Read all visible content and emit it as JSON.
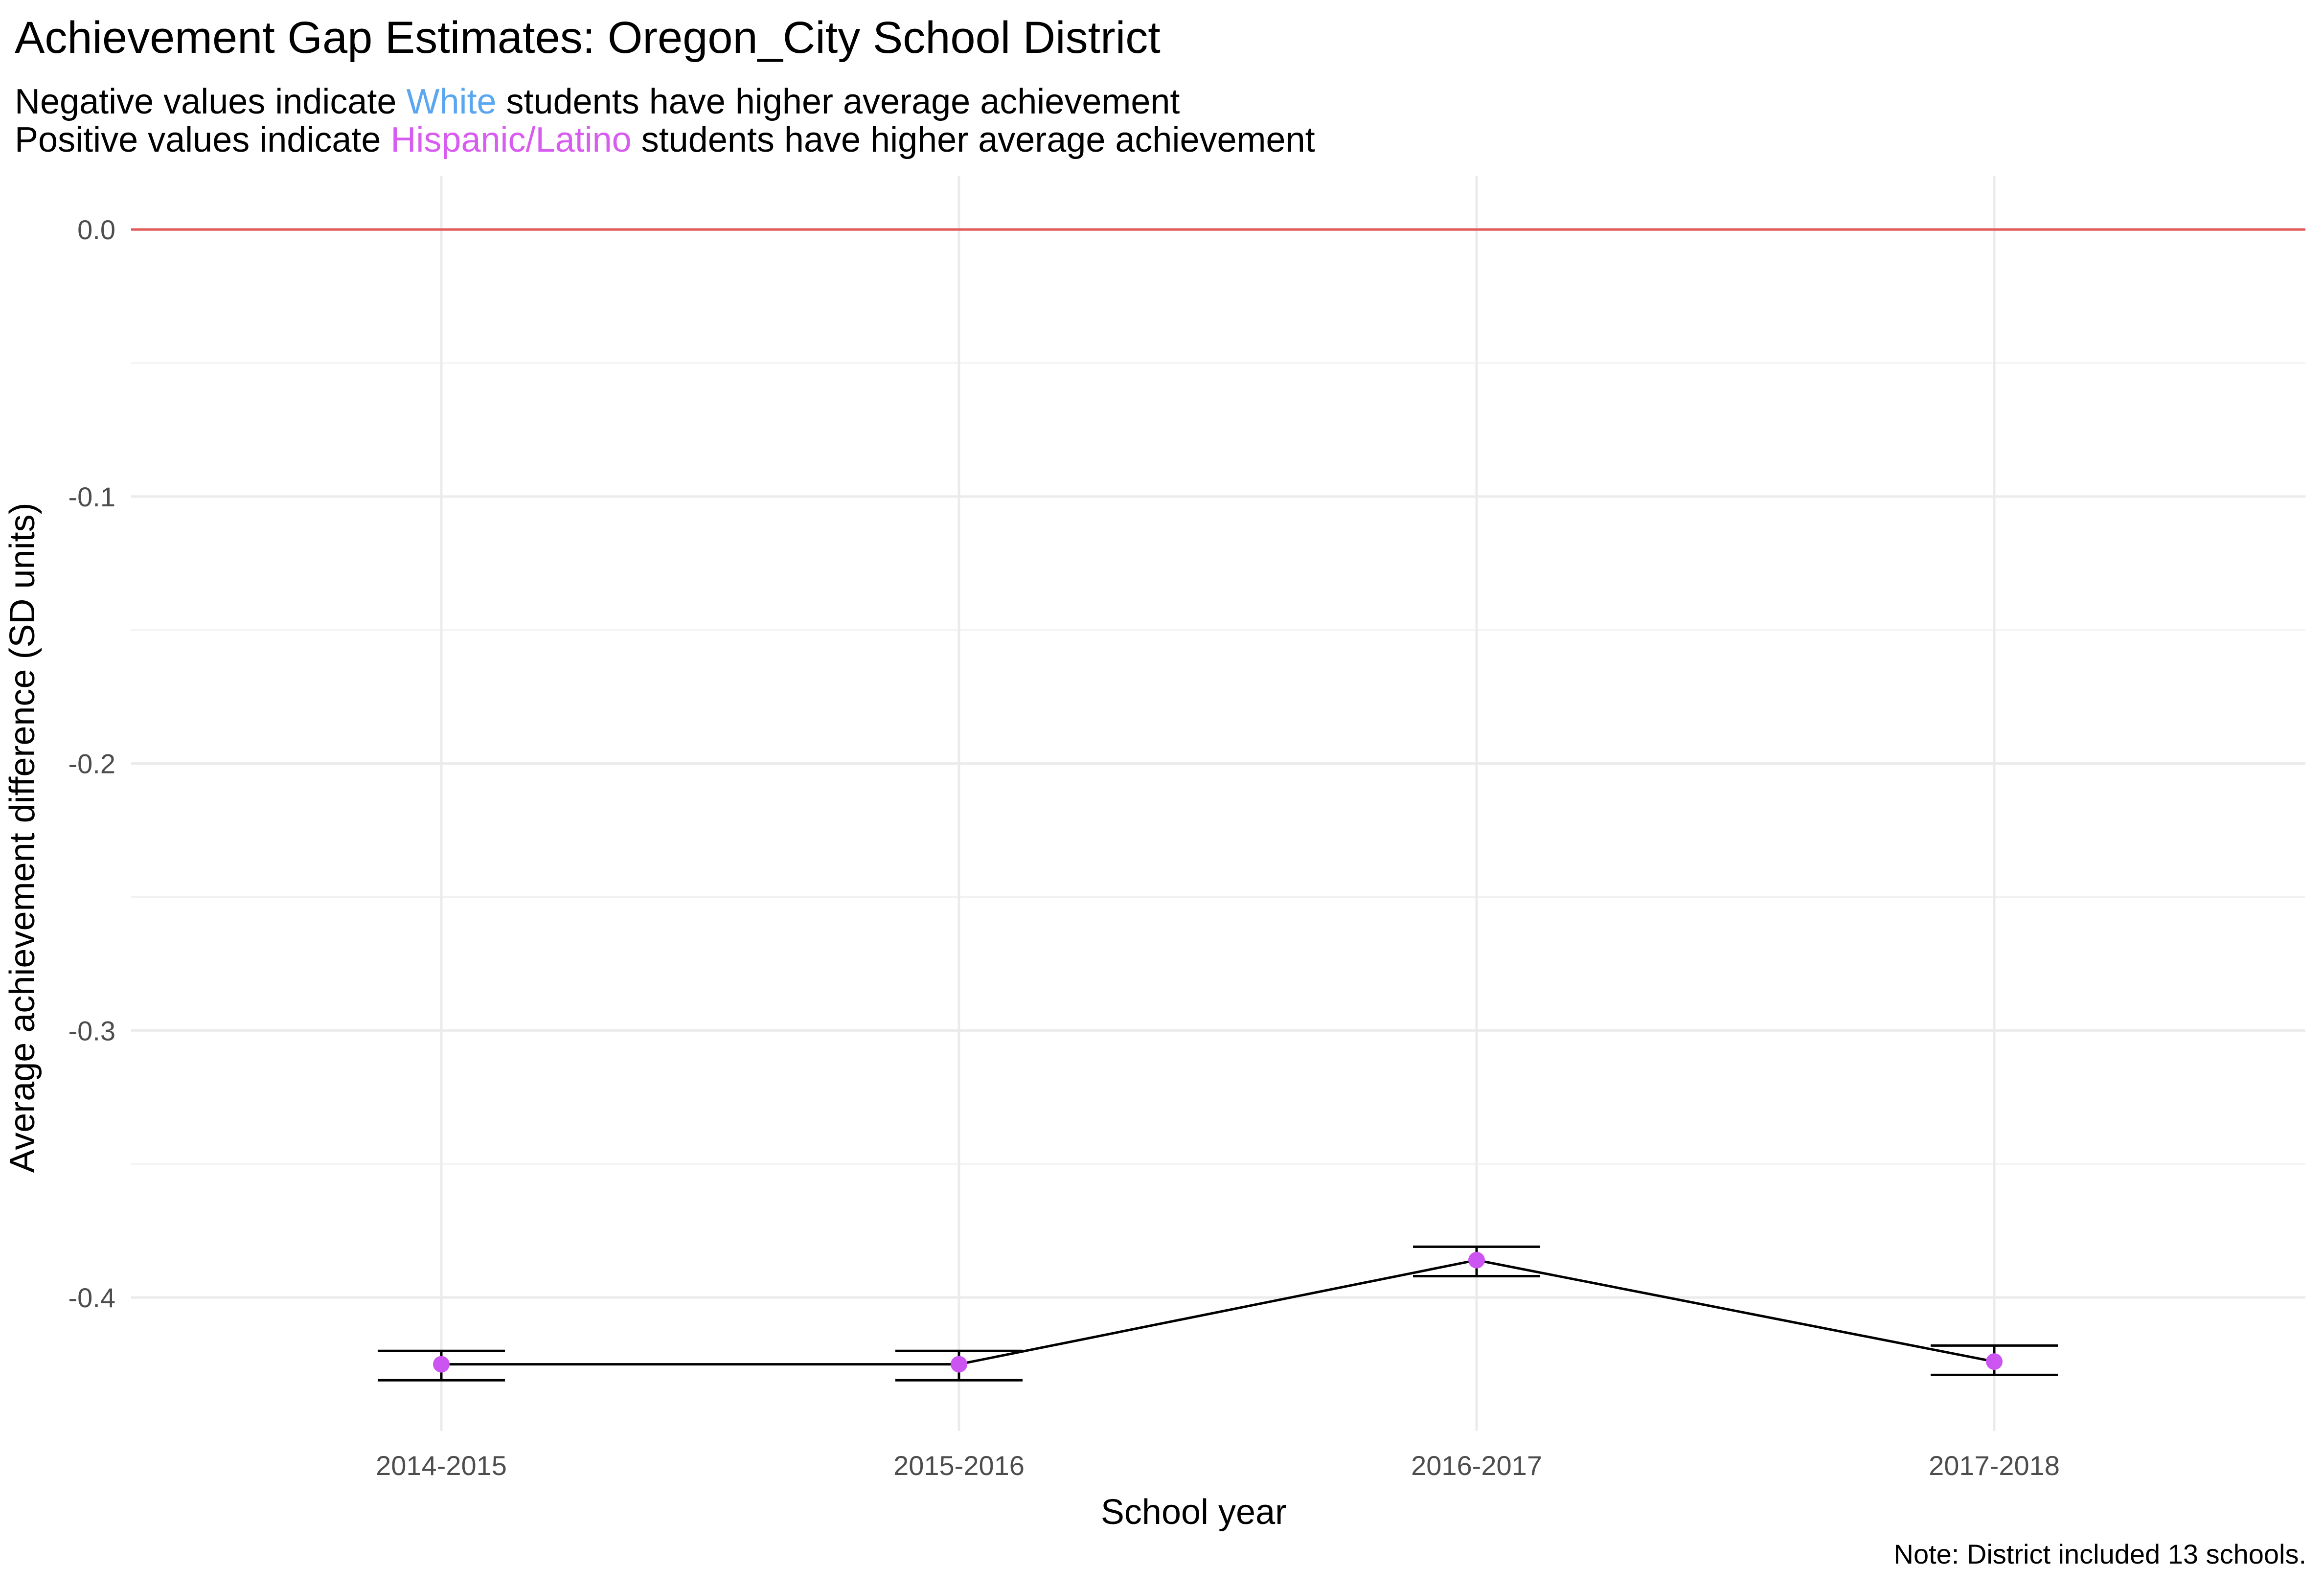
{
  "header": {
    "title": "Achievement Gap Estimates: Oregon_City School District",
    "subtitle_line1": {
      "before": "Negative values indicate ",
      "group": "White",
      "after": " students have higher average achievement",
      "group_color": "#5aa6f0"
    },
    "subtitle_line2": {
      "before": "Positive values indicate ",
      "group": "Hispanic/Latino",
      "after": " students have higher average achievement",
      "group_color": "#d95cf0"
    }
  },
  "note": "Note: District included 13 schools.",
  "chart_data": {
    "type": "line",
    "title": "Achievement Gap Estimates: Oregon_City School District",
    "xlabel": "School year",
    "ylabel": "Average achievement difference (SD units)",
    "categories": [
      "2014-2015",
      "2015-2016",
      "2016-2017",
      "2017-2018"
    ],
    "series": [
      {
        "values": [
          -0.425,
          -0.425,
          -0.386,
          -0.424
        ],
        "lower": [
          -0.431,
          -0.431,
          -0.392,
          -0.429
        ],
        "upper": [
          -0.42,
          -0.42,
          -0.381,
          -0.418
        ],
        "color": "#000000",
        "point_color": "#cc55f2"
      }
    ],
    "reference_line": {
      "y": 0.0,
      "color": "#e05a5a"
    },
    "ylim": [
      -0.45,
      0.02
    ],
    "yticks": [
      0.0,
      -0.1,
      -0.2,
      -0.3,
      -0.4
    ],
    "ytick_labels": [
      "0.0",
      "-0.1",
      "-0.2",
      "-0.3",
      "-0.4"
    ],
    "grid": true,
    "legend": "none"
  }
}
